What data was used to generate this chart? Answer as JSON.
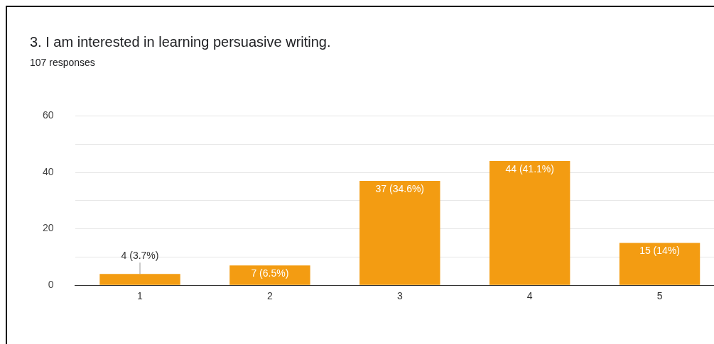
{
  "chart_data": {
    "type": "bar",
    "title": "3. I am interested in learning persuasive writing.",
    "subtitle": "107 responses",
    "categories": [
      "1",
      "2",
      "3",
      "4",
      "5"
    ],
    "values": [
      4,
      7,
      37,
      44,
      15
    ],
    "value_labels": [
      "4 (3.7%)",
      "7 (6.5%)",
      "37 (34.6%)",
      "44 (41.1%)",
      "15 (14%)"
    ],
    "color": "#f39c12",
    "ylim": [
      0,
      60
    ],
    "yticks": [
      0,
      {
        "value": 10,
        "label": null
      },
      20,
      {
        "value": 30,
        "label": null
      },
      40,
      {
        "value": 50,
        "label": null
      },
      60
    ],
    "grid": "y",
    "legend": false
  }
}
